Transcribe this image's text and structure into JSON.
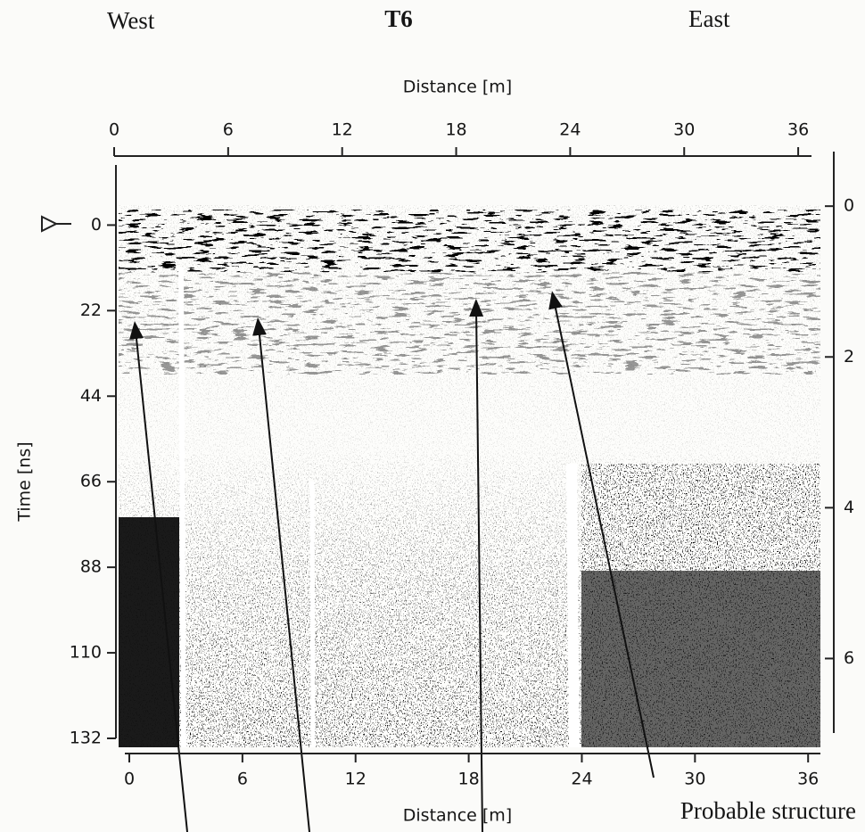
{
  "chart_data": {
    "type": "radargram",
    "title": "T6",
    "left_label": "West",
    "right_label": "East",
    "xlabel": "Distance [m]",
    "ylabel": "Time [ns]",
    "xlim": [
      0,
      36.7
    ],
    "xticks": [
      0,
      6,
      12,
      18,
      24,
      30,
      36
    ],
    "ylim": [
      -15,
      132
    ],
    "y_inverted": true,
    "yticks": [
      0,
      22,
      44,
      66,
      88,
      110,
      132
    ],
    "y2lim": [
      -0.7,
      7
    ],
    "y2ticks": [
      0,
      2,
      4,
      6
    ],
    "annotation": "Probable structure"
  }
}
